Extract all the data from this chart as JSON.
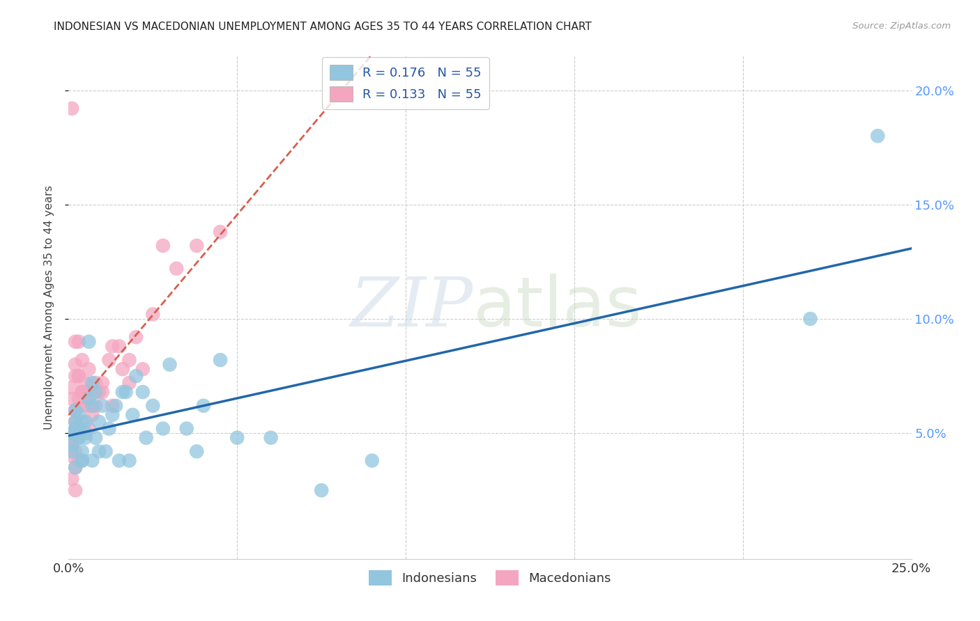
{
  "title": "INDONESIAN VS MACEDONIAN UNEMPLOYMENT AMONG AGES 35 TO 44 YEARS CORRELATION CHART",
  "source": "Source: ZipAtlas.com",
  "ylabel": "Unemployment Among Ages 35 to 44 years",
  "xlim": [
    0.0,
    0.25
  ],
  "ylim": [
    -0.005,
    0.215
  ],
  "yticks": [
    0.05,
    0.1,
    0.15,
    0.2
  ],
  "ytick_labels": [
    "5.0%",
    "10.0%",
    "15.0%",
    "20.0%"
  ],
  "xtick_positions": [
    0.0,
    0.05,
    0.1,
    0.15,
    0.2,
    0.25
  ],
  "xtick_labels": [
    "0.0%",
    "",
    "",
    "",
    "",
    "25.0%"
  ],
  "watermark_zip": "ZIP",
  "watermark_atlas": "atlas",
  "legend_entries": [
    {
      "label": "R = 0.176   N = 55",
      "color": "#92C5DE"
    },
    {
      "label": "R = 0.133   N = 55",
      "color": "#F4A6C0"
    }
  ],
  "indonesian_color": "#92C5DE",
  "macedonian_color": "#F4A6C0",
  "indonesian_line_color": "#2166AC",
  "macedonian_line_color": "#D6604D",
  "background_color": "#ffffff",
  "grid_color": "#cccccc",
  "tick_label_color_right": "#5599ff",
  "indonesian_x": [
    0.001,
    0.002,
    0.003,
    0.001,
    0.002,
    0.003,
    0.001,
    0.002,
    0.003,
    0.002,
    0.004,
    0.003,
    0.004,
    0.002,
    0.005,
    0.004,
    0.003,
    0.005,
    0.006,
    0.004,
    0.007,
    0.006,
    0.008,
    0.005,
    0.007,
    0.009,
    0.008,
    0.01,
    0.009,
    0.007,
    0.012,
    0.013,
    0.011,
    0.015,
    0.014,
    0.016,
    0.018,
    0.017,
    0.019,
    0.02,
    0.022,
    0.025,
    0.023,
    0.028,
    0.03,
    0.035,
    0.038,
    0.04,
    0.045,
    0.05,
    0.06,
    0.075,
    0.09,
    0.22,
    0.24
  ],
  "indonesian_y": [
    0.05,
    0.052,
    0.048,
    0.045,
    0.055,
    0.058,
    0.042,
    0.035,
    0.048,
    0.06,
    0.038,
    0.052,
    0.055,
    0.05,
    0.048,
    0.042,
    0.05,
    0.055,
    0.09,
    0.038,
    0.072,
    0.065,
    0.048,
    0.05,
    0.062,
    0.055,
    0.068,
    0.062,
    0.042,
    0.038,
    0.052,
    0.058,
    0.042,
    0.038,
    0.062,
    0.068,
    0.038,
    0.068,
    0.058,
    0.075,
    0.068,
    0.062,
    0.048,
    0.052,
    0.08,
    0.052,
    0.042,
    0.062,
    0.082,
    0.048,
    0.048,
    0.025,
    0.038,
    0.1,
    0.18
  ],
  "macedonian_x": [
    0.001,
    0.001,
    0.002,
    0.001,
    0.002,
    0.001,
    0.002,
    0.001,
    0.002,
    0.001,
    0.002,
    0.001,
    0.002,
    0.003,
    0.002,
    0.002,
    0.003,
    0.003,
    0.002,
    0.002,
    0.003,
    0.004,
    0.004,
    0.003,
    0.003,
    0.004,
    0.005,
    0.005,
    0.004,
    0.006,
    0.005,
    0.006,
    0.007,
    0.006,
    0.006,
    0.008,
    0.009,
    0.008,
    0.01,
    0.01,
    0.012,
    0.013,
    0.013,
    0.015,
    0.016,
    0.018,
    0.02,
    0.018,
    0.022,
    0.025,
    0.028,
    0.032,
    0.038,
    0.045,
    0.001
  ],
  "macedonian_y": [
    0.05,
    0.045,
    0.06,
    0.04,
    0.055,
    0.07,
    0.08,
    0.065,
    0.035,
    0.045,
    0.06,
    0.03,
    0.025,
    0.038,
    0.042,
    0.075,
    0.075,
    0.065,
    0.09,
    0.055,
    0.09,
    0.062,
    0.068,
    0.075,
    0.052,
    0.068,
    0.072,
    0.068,
    0.082,
    0.068,
    0.068,
    0.052,
    0.058,
    0.078,
    0.062,
    0.072,
    0.068,
    0.062,
    0.072,
    0.068,
    0.082,
    0.062,
    0.088,
    0.088,
    0.078,
    0.072,
    0.092,
    0.082,
    0.078,
    0.102,
    0.132,
    0.122,
    0.132,
    0.138,
    0.192
  ]
}
